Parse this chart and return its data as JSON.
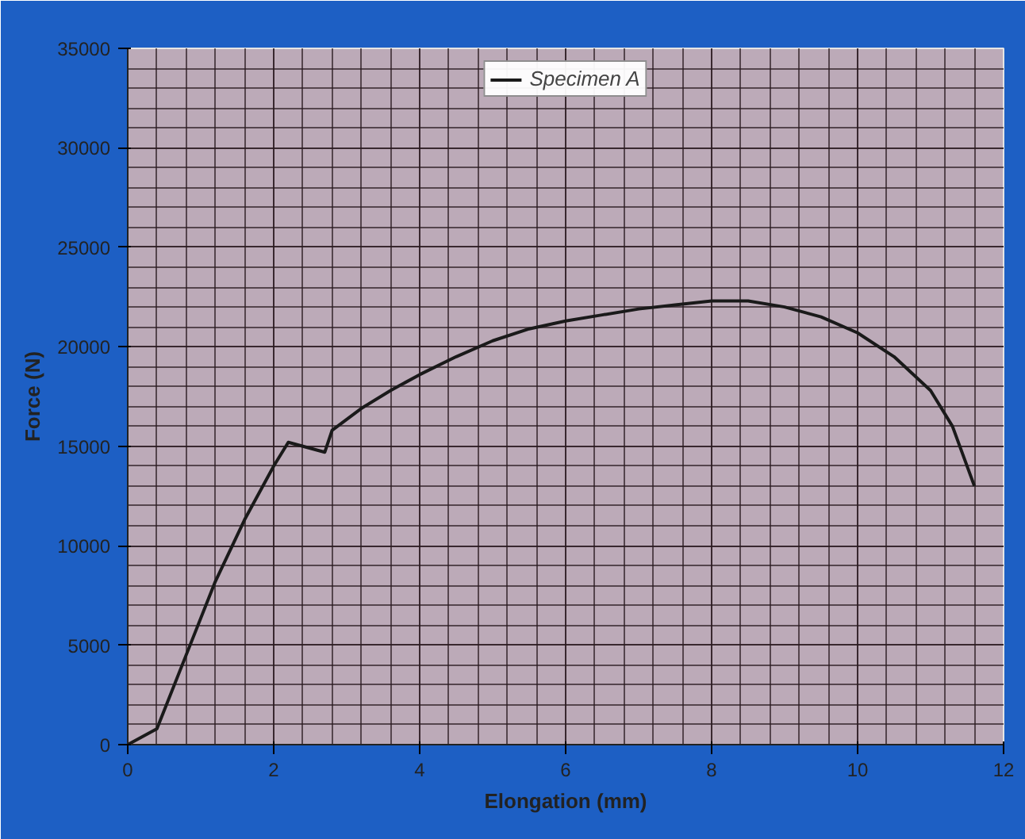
{
  "chart_data": {
    "type": "line",
    "xlabel": "Elongation (mm)",
    "ylabel": "Force (N)",
    "xlim": [
      0,
      12
    ],
    "ylim": [
      0,
      35000
    ],
    "xticks": [
      0,
      2,
      4,
      6,
      8,
      10,
      12
    ],
    "yticks": [
      0,
      5000,
      10000,
      15000,
      20000,
      25000,
      30000,
      35000
    ],
    "grid": true,
    "legend": "top",
    "marker": "none",
    "line_style": "solid",
    "series": [
      {
        "name": "Specimen A",
        "color": "#1a1a1a",
        "x": [
          0,
          0.4,
          0.8,
          1.2,
          1.6,
          2.0,
          2.2,
          2.4,
          2.7,
          2.8,
          3.2,
          3.6,
          4.0,
          4.5,
          5.0,
          5.5,
          6.0,
          6.5,
          7.0,
          7.5,
          8.0,
          8.5,
          9.0,
          9.5,
          10.0,
          10.5,
          11.0,
          11.3,
          11.6
        ],
        "values": [
          0,
          800,
          4500,
          8200,
          11300,
          14000,
          15200,
          15000,
          14700,
          15800,
          16900,
          17800,
          18600,
          19500,
          20300,
          20900,
          21300,
          21600,
          21900,
          22100,
          22300,
          22300,
          22000,
          21500,
          20700,
          19500,
          17800,
          16000,
          13000
        ]
      }
    ]
  }
}
